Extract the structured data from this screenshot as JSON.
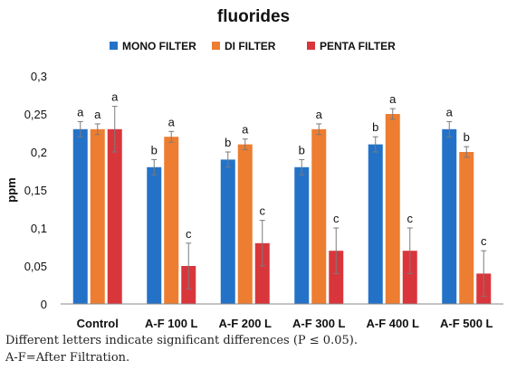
{
  "chart_data": {
    "type": "bar",
    "title": "fluorides",
    "xlabel": "",
    "ylabel": "ppm",
    "ylim": [
      0,
      0.3
    ],
    "yticks": [
      "0",
      "0,05",
      "0,1",
      "0,15",
      "0,2",
      "0,25",
      "0,3"
    ],
    "grid": false,
    "legend_position": "top",
    "categories": [
      "Control",
      "A-F 100 L",
      "A-F 200 L",
      "A-F 300 L",
      "A-F 400 L",
      "A-F 500 L"
    ],
    "series": [
      {
        "name": "MONO FILTER",
        "color": "#2472C8",
        "values": [
          0.23,
          0.18,
          0.19,
          0.18,
          0.21,
          0.23
        ],
        "errors": [
          0.01,
          0.01,
          0.01,
          0.01,
          0.01,
          0.01
        ],
        "letters": [
          "a",
          "b",
          "b",
          "b",
          "b",
          "a"
        ]
      },
      {
        "name": "DI FILTER",
        "color": "#ED7D31",
        "values": [
          0.23,
          0.22,
          0.21,
          0.23,
          0.25,
          0.2
        ],
        "errors": [
          0.007,
          0.007,
          0.007,
          0.007,
          0.007,
          0.007
        ],
        "letters": [
          "a",
          "a",
          "a",
          "a",
          "a",
          "b"
        ]
      },
      {
        "name": "PENTA FILTER",
        "color": "#D9363C",
        "values": [
          0.23,
          0.05,
          0.08,
          0.07,
          0.07,
          0.04
        ],
        "errors": [
          0.03,
          0.03,
          0.03,
          0.03,
          0.03,
          0.03
        ],
        "letters": [
          "a",
          "c",
          "c",
          "c",
          "c",
          "c"
        ]
      }
    ]
  },
  "caption": {
    "line1": "Different letters indicate significant differences (P ≤ 0.05).",
    "line2": "A-F=After Filtration."
  }
}
